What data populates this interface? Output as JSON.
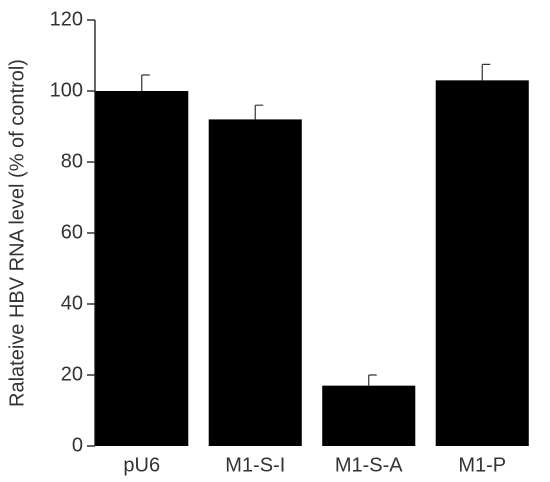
{
  "chart_data": {
    "type": "bar",
    "y_label": "Ralateive HBV RNA level (% of control)",
    "categories": [
      "pU6",
      "M1-S-I",
      "M1-S-A",
      "M1-P"
    ],
    "values": [
      100,
      92,
      17,
      103
    ],
    "errors": [
      4.5,
      4,
      3,
      4.5
    ],
    "color": "#000000",
    "ylim": [
      0,
      120
    ],
    "yticks": [
      0,
      20,
      40,
      60,
      80,
      100,
      120
    ]
  }
}
